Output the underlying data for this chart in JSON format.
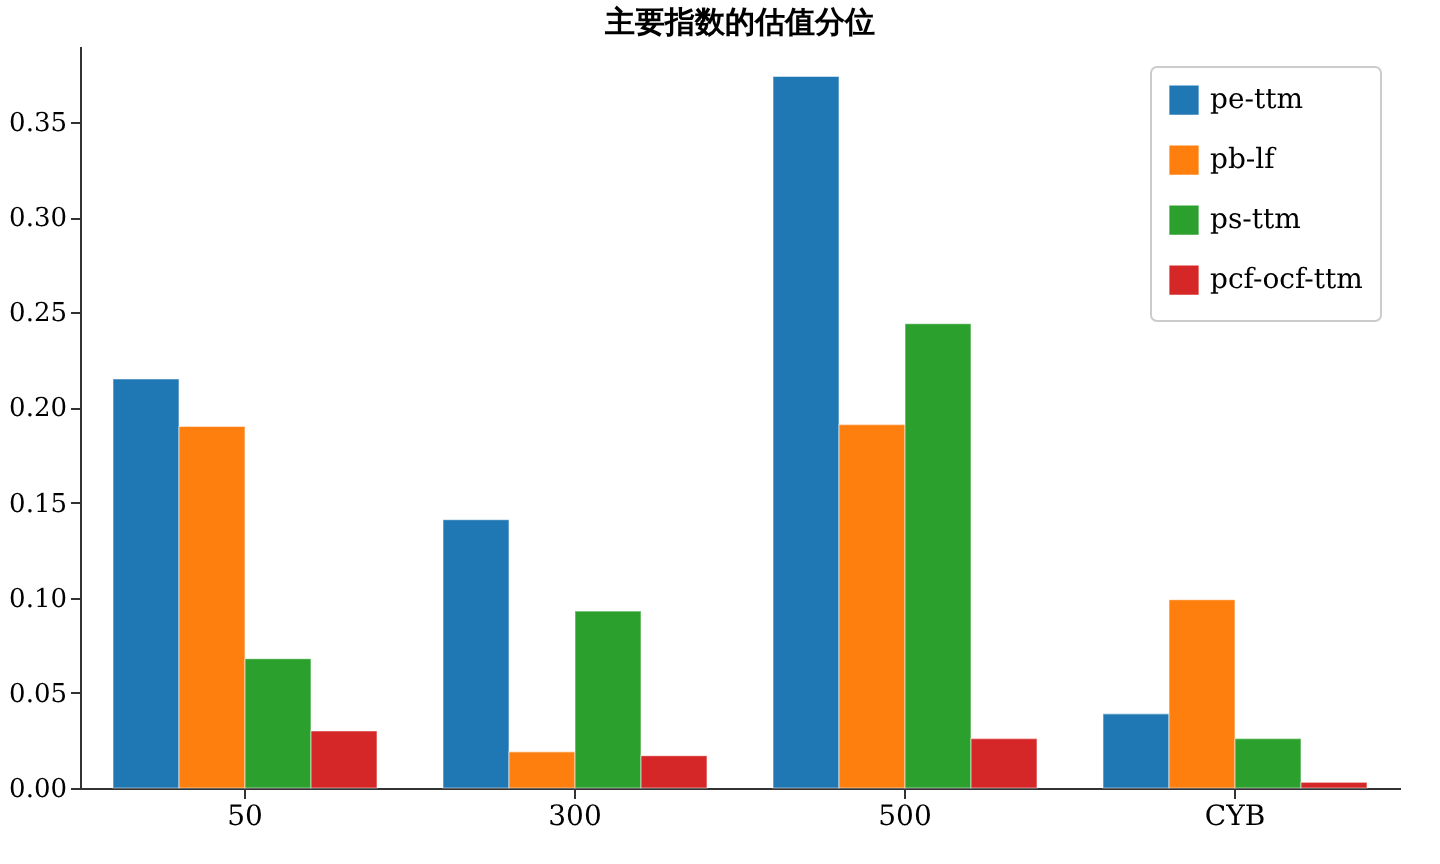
{
  "chart_data": {
    "type": "bar",
    "title": "主要指数的估值分位",
    "categories": [
      "50",
      "300",
      "500",
      "CYB"
    ],
    "series": [
      {
        "name": "pe-ttm",
        "color": "#1f77b4",
        "values": [
          0.215,
          0.141,
          0.374,
          0.039
        ]
      },
      {
        "name": "pb-lf",
        "color": "#ff7f0e",
        "values": [
          0.19,
          0.019,
          0.191,
          0.099
        ]
      },
      {
        "name": "ps-ttm",
        "color": "#2ca02c",
        "values": [
          0.068,
          0.093,
          0.244,
          0.026
        ]
      },
      {
        "name": "pcf-ocf-ttm",
        "color": "#d62728",
        "values": [
          0.03,
          0.017,
          0.026,
          0.003
        ]
      }
    ],
    "ylim": [
      0,
      0.39
    ],
    "yticks": [
      {
        "value": 0,
        "label": "0.00"
      },
      0.05,
      {
        "value": 0.1,
        "label": "0.10"
      },
      0.15,
      {
        "value": 0.2,
        "label": "0.20"
      },
      0.25,
      {
        "value": 0.3,
        "label": "0.30"
      },
      0.35
    ],
    "grid": false,
    "legend": "top right"
  }
}
